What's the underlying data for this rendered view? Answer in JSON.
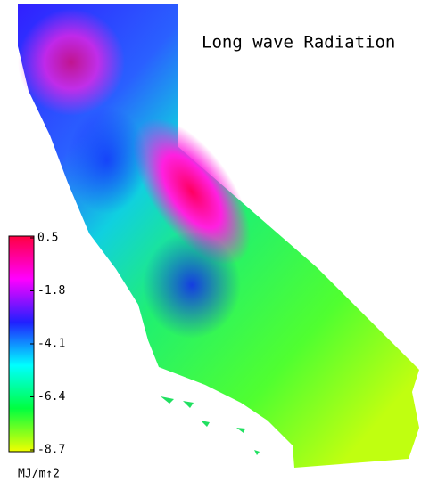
{
  "title": "Long wave Radiation",
  "colorbar": {
    "lim": [
      -8.7,
      0.5
    ],
    "ticks": [
      0.5,
      -1.8,
      -4.1,
      -6.4,
      -8.7
    ],
    "unit": "MJ/m↑2",
    "colors": [
      "#ff0040",
      "#ff00ff",
      "#2020ff",
      "#00ffff",
      "#00ff40",
      "#f0ff00"
    ]
  }
}
